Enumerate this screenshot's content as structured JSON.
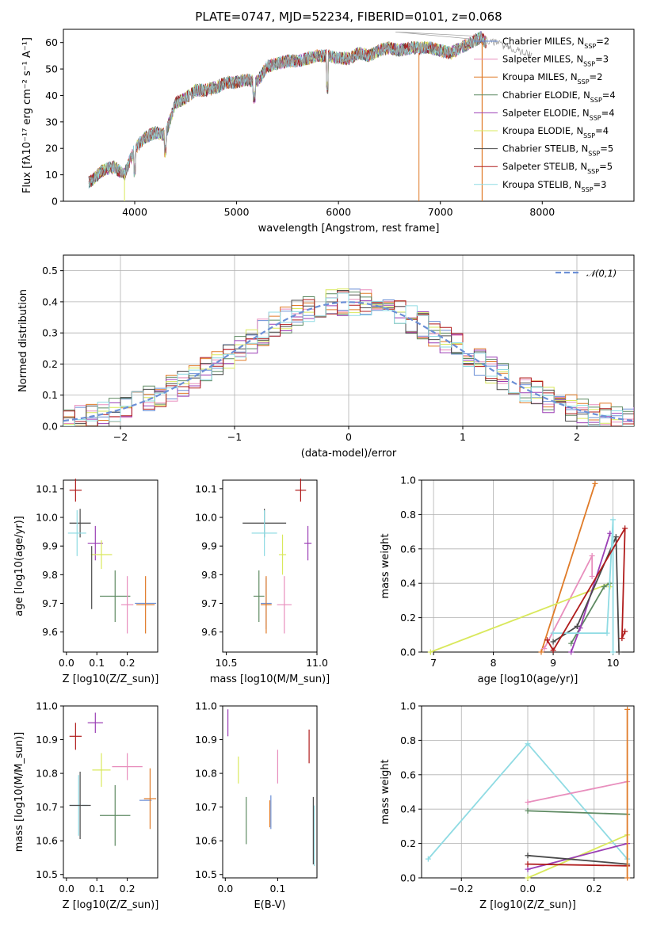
{
  "chart_data": [
    {
      "id": "spectrum",
      "type": "line",
      "title": "PLATE=0747, MJD=52234, FIBERID=0101, z=0.068",
      "xlabel": "wavelength [Angstrom, rest frame]",
      "ylabel": "Flux [f_λ 10^-17 erg cm^-2 s^-1 A^-1]",
      "xlim": [
        3300,
        8900
      ],
      "ylim": [
        0,
        65
      ],
      "xticks": [
        4000,
        5000,
        6000,
        7000,
        8000
      ],
      "yticks": [
        0,
        10,
        20,
        30,
        40,
        50,
        60
      ],
      "grid": false,
      "legend_position": "upper right",
      "series": [
        {
          "name": "Chabrier MILES, N_SSP=2",
          "color": "#6b8fd6"
        },
        {
          "name": "Salpeter MILES, N_SSP=3",
          "color": "#e88ebd"
        },
        {
          "name": "Kroupa MILES, N_SSP=2",
          "color": "#e07b28"
        },
        {
          "name": "Chabrier ELODIE, N_SSP=4",
          "color": "#5e8a62"
        },
        {
          "name": "Salpeter ELODIE, N_SSP=4",
          "color": "#9b3fb5"
        },
        {
          "name": "Kroupa ELODIE, N_SSP=4",
          "color": "#d9e85c"
        },
        {
          "name": "Chabrier STELIB, N_SSP=5",
          "color": "#4a4a4a"
        },
        {
          "name": "Salpeter STELIB, N_SSP=5",
          "color": "#b01c1c"
        },
        {
          "name": "Kroupa STELIB, N_SSP=3",
          "color": "#8fdbe3"
        }
      ],
      "data_continuum": {
        "x": [
          3550,
          3700,
          3800,
          3900,
          4000,
          4100,
          4200,
          4300,
          4400,
          4500,
          4600,
          4700,
          4800,
          4900,
          5000,
          5100,
          5200,
          5300,
          5400,
          5500,
          5600,
          5700,
          5800,
          5900,
          6000,
          6100,
          6200,
          6300,
          6400,
          6500,
          6600,
          6700,
          6800,
          6900,
          7000,
          7100,
          7200,
          7300,
          7400,
          7450
        ],
        "y": [
          7,
          12,
          13,
          10,
          20,
          24,
          26,
          25,
          37,
          39,
          42,
          42,
          43,
          45,
          45,
          46,
          45,
          51,
          52,
          53,
          53,
          54,
          55,
          55,
          54,
          54,
          56,
          55,
          57,
          58,
          57,
          58,
          58,
          58,
          57,
          56,
          58,
          60,
          62,
          60
        ]
      }
    },
    {
      "id": "residuals",
      "type": "histogram",
      "xlabel": "(data-model)/error",
      "ylabel": "Normed distribution",
      "xlim": [
        -2.5,
        2.5
      ],
      "ylim": [
        0,
        0.55
      ],
      "xticks": [
        -2,
        -1,
        0,
        1,
        2
      ],
      "yticks": [
        0.0,
        0.1,
        0.2,
        0.3,
        0.4,
        0.5
      ],
      "grid": true,
      "legend": "N(0,1)",
      "legend_position": "upper right",
      "bin_width": 0.1
    },
    {
      "id": "age_vs_Z",
      "type": "scatter",
      "xlabel": "Z [log10(Z/Z_sun)]",
      "ylabel": "age  [log10(age/yr)]",
      "xlim": [
        -0.01,
        0.3
      ],
      "ylim": [
        9.53,
        10.13
      ],
      "xticks": [
        0.0,
        0.1,
        0.2
      ],
      "yticks": [
        9.6,
        9.7,
        9.8,
        9.9,
        10.0,
        10.1
      ],
      "points": [
        {
          "series": "Salpeter STELIB",
          "x": 0.03,
          "y": 10.095,
          "xerr": 0.02,
          "yerr": 0.04
        },
        {
          "series": "Chabrier STELIB",
          "x": 0.045,
          "y": 9.98,
          "xerr": 0.035,
          "yerr": 0.05
        },
        {
          "series": "Kroupa STELIB",
          "x": 0.035,
          "y": 9.945,
          "xerr": 0.03,
          "yerr": 0.08
        },
        {
          "series": "Salpeter ELODIE",
          "x": 0.095,
          "y": 9.91,
          "xerr": 0.025,
          "yerr": 0.06
        },
        {
          "series": "Kroupa ELODIE",
          "x": 0.115,
          "y": 9.87,
          "xerr": 0.035,
          "yerr": 0.05
        },
        {
          "series": "Chabrier ELODIE",
          "x": 0.16,
          "y": 9.725,
          "xerr": 0.05,
          "yerr": 0.09
        },
        {
          "series": "Chabrier STELIB",
          "x": 0.083,
          "y": 9.79,
          "xerr": 0.0,
          "yerr": 0.11
        },
        {
          "series": "Salpeter MILES",
          "x": 0.2,
          "y": 9.695,
          "xerr": 0.02,
          "yerr": 0.1
        },
        {
          "series": "Chabrier MILES",
          "x": 0.26,
          "y": 9.7,
          "xerr": 0.035,
          "yerr": 0.0
        },
        {
          "series": "Kroupa MILES",
          "x": 0.26,
          "y": 9.695,
          "xerr": 0.03,
          "yerr": 0.1
        }
      ]
    },
    {
      "id": "age_vs_mass",
      "type": "scatter",
      "xlabel": "mass [log10(M/M_sun)]",
      "ylabel": "",
      "xlim": [
        10.48,
        11.0
      ],
      "ylim": [
        9.53,
        10.13
      ],
      "xticks": [
        10.5,
        11.0
      ],
      "yticks": [
        9.6,
        9.7,
        9.8,
        9.9,
        10.0,
        10.1
      ],
      "points": [
        {
          "series": "Salpeter STELIB",
          "x": 10.91,
          "y": 10.095,
          "xerr": 0.03,
          "yerr": 0.04
        },
        {
          "series": "Chabrier STELIB",
          "x": 10.71,
          "y": 9.98,
          "xerr": 0.12,
          "yerr": 0.05
        },
        {
          "series": "Kroupa STELIB",
          "x": 10.71,
          "y": 9.945,
          "xerr": 0.07,
          "yerr": 0.08
        },
        {
          "series": "Salpeter ELODIE",
          "x": 10.95,
          "y": 9.91,
          "xerr": 0.02,
          "yerr": 0.06
        },
        {
          "series": "Kroupa ELODIE",
          "x": 10.81,
          "y": 9.87,
          "xerr": 0.02,
          "yerr": 0.07
        },
        {
          "series": "Chabrier ELODIE",
          "x": 10.68,
          "y": 9.725,
          "xerr": 0.03,
          "yerr": 0.09
        },
        {
          "series": "Salpeter MILES",
          "x": 10.82,
          "y": 9.695,
          "xerr": 0.04,
          "yerr": 0.1
        },
        {
          "series": "Chabrier MILES",
          "x": 10.72,
          "y": 9.7,
          "xerr": 0.03,
          "yerr": 0.09
        },
        {
          "series": "Kroupa MILES",
          "x": 10.72,
          "y": 9.695,
          "xerr": 0.03,
          "yerr": 0.1
        }
      ]
    },
    {
      "id": "weight_vs_age",
      "type": "line",
      "xlabel": "age  [log10(age/yr)]",
      "ylabel": "mass weight",
      "xlim": [
        6.8,
        10.35
      ],
      "ylim": [
        0,
        1
      ],
      "xticks": [
        7,
        8,
        9,
        10
      ],
      "yticks": [
        0.0,
        0.2,
        0.4,
        0.6,
        0.8,
        1.0
      ],
      "grid": true,
      "series": [
        {
          "name": "Kroupa MILES",
          "x": [
            8.8,
            9.7
          ],
          "y": [
            0.0,
            0.98
          ]
        },
        {
          "name": "Salpeter MILES",
          "x": [
            8.85,
            9.65,
            9.65
          ],
          "y": [
            0.02,
            0.56,
            0.44
          ]
        },
        {
          "name": "Kroupa ELODIE",
          "x": [
            6.95,
            9.95,
            9.95
          ],
          "y": [
            0.0,
            0.4,
            0.38
          ]
        },
        {
          "name": "Chabrier ELODIE",
          "x": [
            9.3,
            9.85,
            9.95
          ],
          "y": [
            0.05,
            0.38,
            0.4
          ]
        },
        {
          "name": "Salpeter ELODIE",
          "x": [
            9.3,
            9.45,
            9.95
          ],
          "y": [
            0.0,
            0.14,
            0.69
          ]
        },
        {
          "name": "Chabrier STELIB",
          "x": [
            9.0,
            9.4,
            10.05,
            10.1
          ],
          "y": [
            0.06,
            0.15,
            0.67,
            0.0
          ]
        },
        {
          "name": "Kroupa STELIB",
          "x": [
            9.0,
            9.9,
            10.0,
            10.0
          ],
          "y": [
            0.11,
            0.11,
            0.77,
            0.0
          ]
        },
        {
          "name": "Salpeter STELIB",
          "x": [
            8.9,
            9.0,
            10.2,
            10.15,
            10.2
          ],
          "y": [
            0.07,
            0.01,
            0.72,
            0.08,
            0.12
          ]
        }
      ]
    },
    {
      "id": "mass_vs_Z",
      "type": "scatter",
      "xlabel": "Z [log10(Z/Z_sun)]",
      "ylabel": "mass [log10(M/M_sun)]",
      "xlim": [
        -0.01,
        0.3
      ],
      "ylim": [
        10.49,
        11.0
      ],
      "xticks": [
        0.0,
        0.1,
        0.2
      ],
      "yticks": [
        10.5,
        10.6,
        10.7,
        10.8,
        10.9,
        11.0
      ],
      "points": [
        {
          "series": "Salpeter ELODIE",
          "x": 0.095,
          "y": 10.95,
          "xerr": 0.025,
          "yerr": 0.03
        },
        {
          "series": "Salpeter STELIB",
          "x": 0.03,
          "y": 10.91,
          "xerr": 0.02,
          "yerr": 0.04
        },
        {
          "series": "Kroupa ELODIE",
          "x": 0.115,
          "y": 10.81,
          "xerr": 0.03,
          "yerr": 0.05
        },
        {
          "series": "Salpeter MILES",
          "x": 0.2,
          "y": 10.82,
          "xerr": 0.05,
          "yerr": 0.04
        },
        {
          "series": "Chabrier MILES",
          "x": 0.26,
          "y": 10.72,
          "xerr": 0.02,
          "yerr": 0.0
        },
        {
          "series": "Kroupa MILES",
          "x": 0.275,
          "y": 10.725,
          "xerr": 0.02,
          "yerr": 0.09
        },
        {
          "series": "Kroupa STELIB",
          "x": 0.04,
          "y": 10.705,
          "xerr": 0.03,
          "yerr": 0.09
        },
        {
          "series": "Chabrier STELIB",
          "x": 0.045,
          "y": 10.705,
          "xerr": 0.035,
          "yerr": 0.1
        },
        {
          "series": "Chabrier ELODIE",
          "x": 0.16,
          "y": 10.675,
          "xerr": 0.05,
          "yerr": 0.09
        }
      ]
    },
    {
      "id": "mass_vs_EBV",
      "type": "scatter",
      "xlabel": "E(B-V)",
      "ylabel": "",
      "xlim": [
        -0.005,
        0.175
      ],
      "ylim": [
        10.49,
        11.0
      ],
      "xticks": [
        0.0,
        0.1
      ],
      "yticks": [
        10.5,
        10.6,
        10.7,
        10.8,
        10.9,
        11.0
      ],
      "points": [
        {
          "series": "Salpeter ELODIE",
          "x": 0.005,
          "y": 10.95,
          "yerr": 0.04
        },
        {
          "series": "Kroupa ELODIE",
          "x": 0.025,
          "y": 10.81,
          "yerr": 0.04
        },
        {
          "series": "Salpeter MILES",
          "x": 0.1,
          "y": 10.82,
          "yerr": 0.05
        },
        {
          "series": "Salpeter STELIB",
          "x": 0.16,
          "y": 10.88,
          "yerr": 0.05
        },
        {
          "series": "Chabrier ELODIE",
          "x": 0.04,
          "y": 10.66,
          "yerr": 0.07
        },
        {
          "series": "Kroupa MILES",
          "x": 0.085,
          "y": 10.68,
          "yerr": 0.04
        },
        {
          "series": "Chabrier MILES",
          "x": 0.087,
          "y": 10.685,
          "yerr": 0.05
        },
        {
          "series": "Kroupa STELIB",
          "x": 0.17,
          "y": 10.615,
          "yerr": 0.09
        },
        {
          "series": "Chabrier STELIB",
          "x": 0.168,
          "y": 10.63,
          "yerr": 0.1
        }
      ]
    },
    {
      "id": "weight_vs_Z",
      "type": "line",
      "xlabel": "Z [log10(Z/Z_sun)]",
      "ylabel": "mass weight",
      "xlim": [
        -0.32,
        0.32
      ],
      "ylim": [
        0,
        1
      ],
      "xticks": [
        -0.2,
        0.0,
        0.2
      ],
      "yticks": [
        0.0,
        0.2,
        0.4,
        0.6,
        0.8,
        1.0
      ],
      "grid": true,
      "series": [
        {
          "name": "Kroupa STELIB",
          "x": [
            -0.3,
            0.0,
            0.3
          ],
          "y": [
            0.11,
            0.78,
            0.11
          ]
        },
        {
          "name": "Salpeter MILES",
          "x": [
            0.0,
            0.3
          ],
          "y": [
            0.44,
            0.56
          ]
        },
        {
          "name": "Chabrier ELODIE",
          "x": [
            0.0,
            0.3
          ],
          "y": [
            0.39,
            0.37
          ]
        },
        {
          "name": "Kroupa ELODIE",
          "x": [
            0.0,
            0.3
          ],
          "y": [
            0.0,
            0.25
          ]
        },
        {
          "name": "Salpeter ELODIE",
          "x": [
            0.0,
            0.3
          ],
          "y": [
            0.05,
            0.2
          ]
        },
        {
          "name": "Chabrier STELIB",
          "x": [
            0.0,
            0.3
          ],
          "y": [
            0.13,
            0.08
          ]
        },
        {
          "name": "Salpeter STELIB",
          "x": [
            0.0,
            0.3
          ],
          "y": [
            0.08,
            0.07
          ]
        },
        {
          "name": "Kroupa MILES",
          "x": [
            0.3,
            0.3
          ],
          "y": [
            0.0,
            0.98
          ]
        }
      ]
    }
  ]
}
